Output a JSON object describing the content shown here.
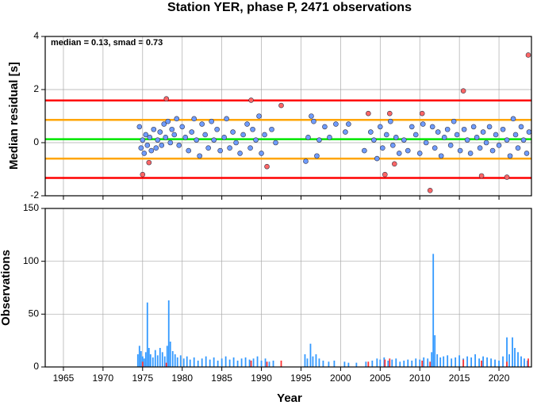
{
  "chart_data": [
    {
      "type": "scatter",
      "title": "Station YER, phase P, 2471 observations",
      "ylabel": "Median residual [s]",
      "annotation": "median = 0.13, smad = 0.73",
      "xlim": [
        1962.7,
        2024.1
      ],
      "xticks": [
        1965,
        1970,
        1975,
        1980,
        1985,
        1990,
        1995,
        2000,
        2005,
        2010,
        2015,
        2020
      ],
      "ylim": [
        -2,
        4
      ],
      "yticks": [
        -2,
        0,
        2,
        4
      ],
      "grid": true,
      "hlines": [
        {
          "value": 1.59,
          "color": "#ff0000"
        },
        {
          "value": 0.86,
          "color": "#ffa500"
        },
        {
          "value": 0.13,
          "color": "#00e600"
        },
        {
          "value": -0.6,
          "color": "#ffa500"
        },
        {
          "value": -1.33,
          "color": "#ff0000"
        }
      ],
      "series": [
        {
          "color": "#6f9cff",
          "x": [
            1974.6,
            1974.8,
            1975.0,
            1975.2,
            1975.4,
            1975.6,
            1975.9,
            1976.1,
            1976.4,
            1976.7,
            1976.9,
            1977.2,
            1977.4,
            1977.7,
            1977.9,
            1978.2,
            1978.5,
            1978.7,
            1979.0,
            1979.3,
            1979.6,
            1980.0,
            1980.4,
            1980.8,
            1981.2,
            1981.5,
            1981.8,
            1982.2,
            1982.5,
            1982.9,
            1983.3,
            1983.7,
            1984.0,
            1984.4,
            1984.8,
            1985.3,
            1985.6,
            1986.0,
            1986.4,
            1986.8,
            1987.3,
            1987.7,
            1988.2,
            1988.6,
            1988.9,
            1989.3,
            1989.7,
            1990.0,
            1990.4,
            1991.3,
            1991.8,
            1995.6,
            1995.9,
            1996.3,
            1996.6,
            1997.0,
            1997.3,
            1998.0,
            1998.6,
            1999.4,
            2000.6,
            2001.0,
            2003.0,
            2003.8,
            2004.2,
            2004.6,
            2005.0,
            2005.3,
            2005.8,
            2006.3,
            2006.6,
            2007.0,
            2007.4,
            2008.0,
            2008.5,
            2009.0,
            2009.5,
            2010.0,
            2010.4,
            2010.8,
            2011.6,
            2011.9,
            2012.3,
            2012.7,
            2013.1,
            2013.5,
            2013.9,
            2014.3,
            2014.7,
            2015.1,
            2015.6,
            2016.0,
            2016.4,
            2016.8,
            2017.2,
            2017.6,
            2018.0,
            2018.4,
            2018.8,
            2019.2,
            2019.6,
            2020.0,
            2020.5,
            2021.0,
            2021.4,
            2021.8,
            2022.1,
            2022.4,
            2022.8,
            2023.1,
            2023.5,
            2023.8
          ],
          "values": [
            0.6,
            -0.2,
            0.1,
            -0.4,
            0.3,
            -0.1,
            0.2,
            -0.3,
            0.5,
            -0.2,
            0.1,
            0.4,
            -0.1,
            0.7,
            0.2,
            0.8,
            0.0,
            0.5,
            0.3,
            0.9,
            -0.1,
            0.6,
            0.2,
            -0.3,
            0.4,
            0.9,
            0.1,
            -0.5,
            0.7,
            0.3,
            -0.2,
            0.8,
            0.1,
            0.5,
            -0.3,
            0.2,
            0.9,
            -0.2,
            0.4,
            0.0,
            -0.4,
            0.3,
            0.7,
            -0.2,
            0.5,
            0.1,
            1.0,
            -0.4,
            0.3,
            0.5,
            0.0,
            -0.7,
            0.2,
            1.0,
            0.8,
            -0.5,
            0.1,
            0.6,
            0.2,
            0.7,
            0.4,
            0.7,
            -0.3,
            0.4,
            0.1,
            -0.6,
            0.6,
            -0.2,
            0.3,
            0.8,
            -0.1,
            0.2,
            -0.4,
            0.1,
            -0.3,
            0.6,
            0.3,
            -0.4,
            0.7,
            0.0,
            0.6,
            -0.2,
            0.4,
            -0.5,
            0.2,
            0.5,
            -0.1,
            0.8,
            0.3,
            -0.3,
            0.5,
            0.1,
            -0.4,
            0.6,
            0.2,
            -0.2,
            0.4,
            0.0,
            0.6,
            -0.3,
            0.3,
            -0.1,
            0.5,
            0.1,
            -0.5,
            0.9,
            0.3,
            -0.2,
            0.6,
            0.1,
            -0.4,
            0.4
          ]
        },
        {
          "color": "#ff6666",
          "x": [
            1975.0,
            1975.8,
            1978.0,
            1988.7,
            1990.7,
            1992.5,
            2003.5,
            2005.6,
            2006.2,
            2006.8,
            2010.3,
            2011.3,
            2015.5,
            2017.8,
            2021.0,
            2023.7
          ],
          "values": [
            -1.2,
            -0.75,
            1.65,
            1.6,
            -0.9,
            1.4,
            1.1,
            -1.2,
            1.1,
            -0.8,
            1.1,
            -1.8,
            1.95,
            -1.25,
            -1.3,
            3.3
          ]
        }
      ]
    },
    {
      "type": "bar",
      "ylabel": "Observations",
      "xlabel": "Year",
      "xlim": [
        1962.7,
        2024.1
      ],
      "xticks": [
        1965,
        1970,
        1975,
        1980,
        1985,
        1990,
        1995,
        2000,
        2005,
        2010,
        2015,
        2020
      ],
      "ylim": [
        0,
        150
      ],
      "yticks": [
        0,
        50,
        100,
        150
      ],
      "grid": true,
      "series": [
        {
          "color": "#3399ff",
          "x": [
            1974.4,
            1974.6,
            1974.8,
            1975.0,
            1975.2,
            1975.4,
            1975.6,
            1975.8,
            1976.0,
            1976.3,
            1976.6,
            1976.9,
            1977.2,
            1977.5,
            1977.8,
            1978.1,
            1978.3,
            1978.5,
            1978.8,
            1979.1,
            1979.4,
            1979.8,
            1980.2,
            1980.6,
            1981.0,
            1981.5,
            1982.0,
            1982.5,
            1983.0,
            1983.5,
            1984.0,
            1984.5,
            1985.0,
            1985.5,
            1986.0,
            1986.5,
            1987.0,
            1987.5,
            1988.0,
            1988.5,
            1989.0,
            1989.5,
            1990.0,
            1990.5,
            1991.0,
            1991.5,
            1995.5,
            1995.8,
            1996.2,
            1996.5,
            1996.9,
            1997.3,
            1997.8,
            1998.5,
            1999.2,
            2000.5,
            2001.0,
            2002.0,
            2003.2,
            2004.0,
            2004.6,
            2005.0,
            2005.5,
            2006.0,
            2006.5,
            2007.0,
            2007.5,
            2008.0,
            2008.5,
            2009.0,
            2009.5,
            2010.0,
            2010.5,
            2011.0,
            2011.5,
            2011.7,
            2011.9,
            2012.2,
            2012.6,
            2013.0,
            2013.5,
            2014.0,
            2014.5,
            2015.0,
            2015.5,
            2016.0,
            2016.5,
            2017.0,
            2017.5,
            2018.0,
            2018.5,
            2019.0,
            2019.5,
            2020.0,
            2020.5,
            2021.0,
            2021.3,
            2021.7,
            2022.0,
            2022.4,
            2022.8,
            2023.2,
            2023.6
          ],
          "values": [
            12,
            20,
            15,
            10,
            8,
            14,
            61,
            18,
            12,
            9,
            16,
            11,
            18,
            14,
            10,
            20,
            63,
            24,
            15,
            12,
            9,
            11,
            8,
            10,
            7,
            9,
            6,
            8,
            10,
            7,
            9,
            6,
            8,
            10,
            7,
            9,
            6,
            8,
            9,
            7,
            8,
            10,
            6,
            8,
            5,
            6,
            12,
            8,
            22,
            10,
            12,
            8,
            6,
            5,
            6,
            5,
            4,
            4,
            5,
            6,
            8,
            7,
            9,
            6,
            7,
            8,
            5,
            6,
            7,
            6,
            8,
            7,
            9,
            8,
            14,
            107,
            30,
            12,
            9,
            10,
            11,
            8,
            9,
            11,
            8,
            10,
            9,
            12,
            8,
            10,
            9,
            8,
            7,
            6,
            10,
            28,
            12,
            28,
            18,
            14,
            10,
            8,
            6
          ]
        },
        {
          "color": "#ff3333",
          "x": [
            1975.0,
            1978.0,
            1988.7,
            1990.7,
            1992.5,
            2003.5,
            2005.6,
            2006.2,
            2010.3,
            2011.3,
            2015.5,
            2017.8,
            2021.0,
            2023.7
          ],
          "values": [
            5,
            4,
            6,
            5,
            6,
            5,
            7,
            8,
            6,
            5,
            7,
            6,
            5,
            8
          ]
        }
      ]
    }
  ]
}
